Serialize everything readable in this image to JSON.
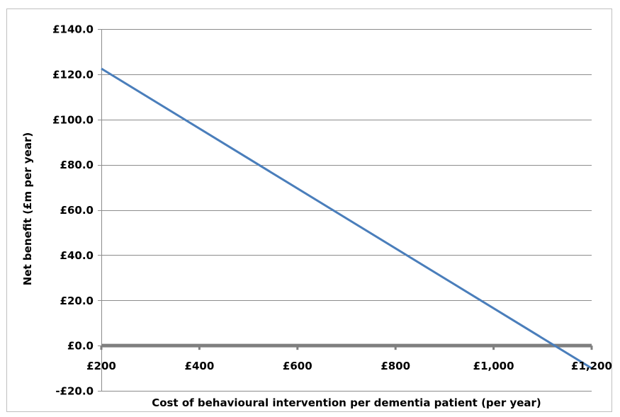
{
  "chart_data": {
    "type": "line",
    "title": "",
    "xlabel": "Cost of behavioural intervention per dementia patient (per year)",
    "ylabel": "Net benefit (£m per year)",
    "x_ticks": [
      200,
      400,
      600,
      800,
      1000,
      1200
    ],
    "x_tick_labels": [
      "£200",
      "£400",
      "£600",
      "£800",
      "£1,000",
      "£1,200"
    ],
    "y_ticks": [
      -20,
      0,
      20,
      40,
      60,
      80,
      100,
      120,
      140
    ],
    "y_tick_labels": [
      "-£20.0",
      "£0.0",
      "£20.0",
      "£40.0",
      "£60.0",
      "£80.0",
      "£100.0",
      "£120.0",
      "£140.0"
    ],
    "xlim": [
      200,
      1200
    ],
    "ylim": [
      -20,
      140
    ],
    "grid": true,
    "legend": "none",
    "series": [
      {
        "x": [
          200,
          1200
        ],
        "y": [
          122.5,
          -10
        ],
        "color": "#4a7ebb"
      }
    ],
    "zero_line_color": "#7f7f7f"
  }
}
